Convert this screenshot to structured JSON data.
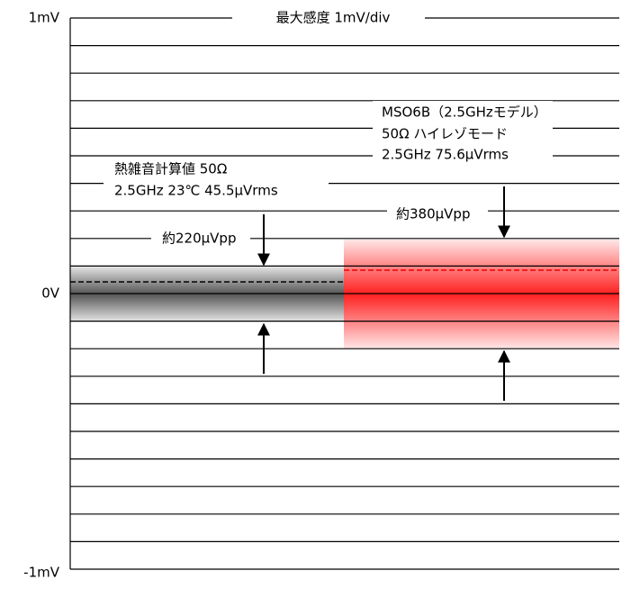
{
  "axis": {
    "top": "1mV",
    "middle": "0V",
    "bottom": "-1mV"
  },
  "title": "最大感度  1mV/div",
  "thermal": {
    "line1": "熱雑音計算値  50Ω",
    "line2": "2.5GHz  23℃  45.5μVrms",
    "pp": "約220μVpp"
  },
  "scope": {
    "line1": "MSO6B（2.5GHzモデル）",
    "line2": "50Ω  ハイレゾモード",
    "line3": "2.5GHz  75.6μVrms",
    "pp": "約380μVpp"
  }
}
